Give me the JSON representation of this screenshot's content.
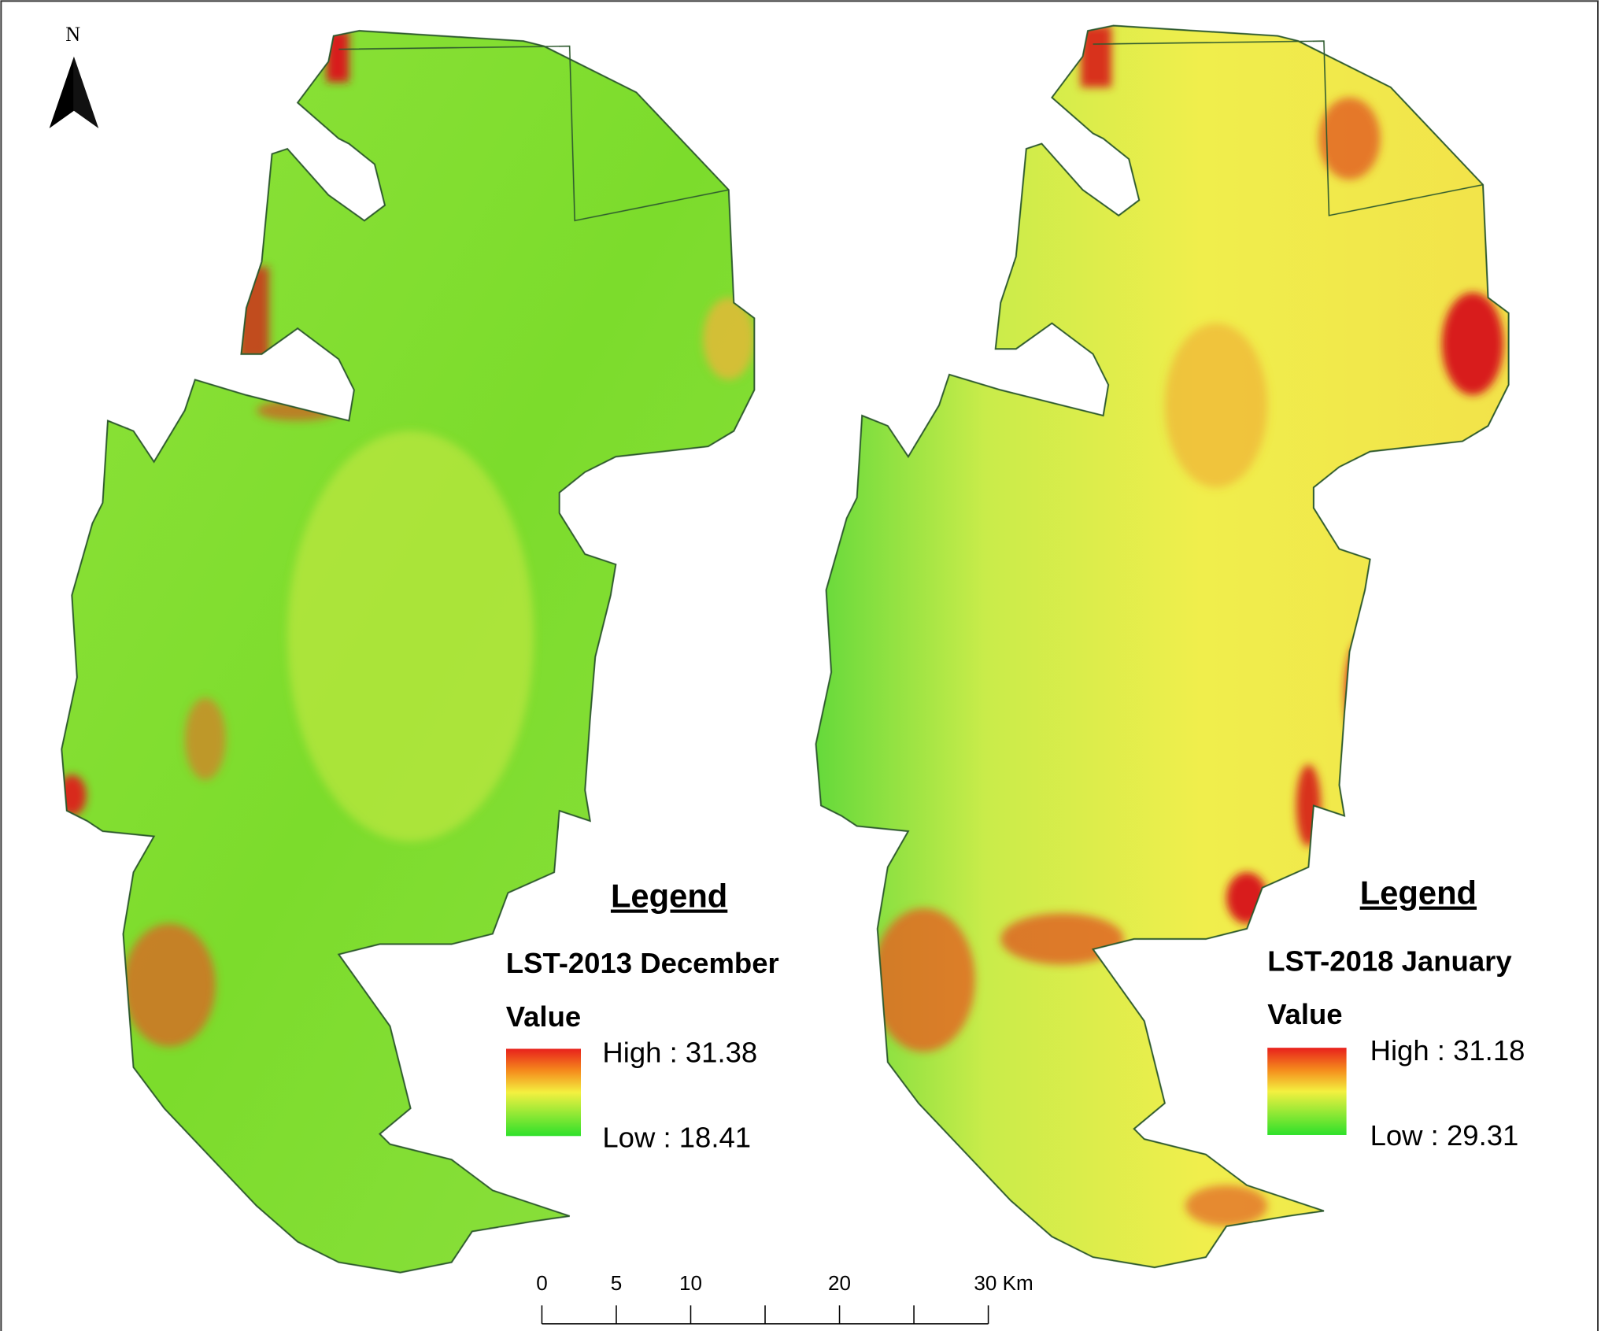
{
  "north_arrow": {
    "label": "N"
  },
  "maps": [
    {
      "legend": {
        "title": "Legend",
        "layer": "LST-2013 December",
        "field": "Value",
        "high": "High : 31.38",
        "low": "Low : 18.41"
      }
    },
    {
      "legend": {
        "title": "Legend",
        "layer": "LST-2018 January",
        "field": "Value",
        "high": "High : 31.18",
        "low": "Low : 29.31"
      }
    }
  ],
  "scale_bar": {
    "ticks": [
      0,
      5,
      10,
      {
        "value": 15,
        "label": null
      },
      20,
      {
        "value": 25,
        "label": null
      },
      {
        "value": 30,
        "label": "30 Km"
      }
    ]
  }
}
